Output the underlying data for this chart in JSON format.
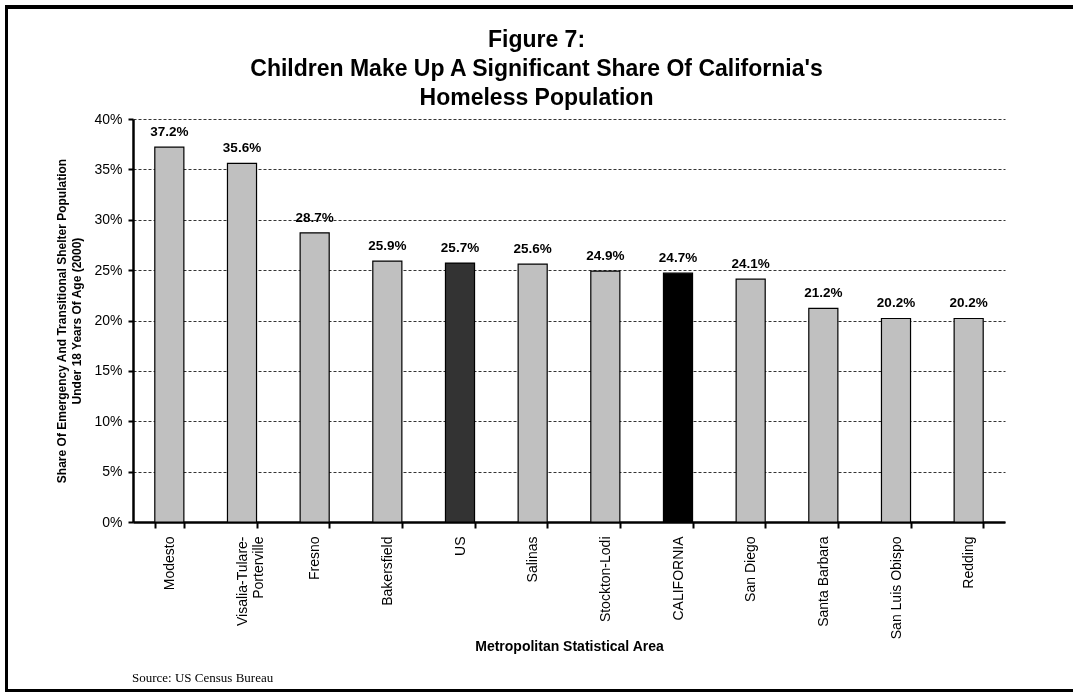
{
  "chart_data": {
    "type": "bar",
    "title": "Figure 7:\nChildren Make Up A Significant Share Of California's\nHomeless Population",
    "xlabel": "Metropolitan Statistical Area",
    "ylabel": "Share Of Emergency And Transitional Shelter Population\nUnder 18 Years Of Age (2000)",
    "categories": [
      "Modesto",
      "Visalia-Tulare-Porterville",
      "Fresno",
      "Bakersfield",
      "US",
      "Salinas",
      "Stockton-Lodi",
      "CALIFORNIA",
      "San Diego",
      "Santa Barbara",
      "San Luis Obispo",
      "Redding"
    ],
    "values": [
      37.2,
      35.6,
      28.7,
      25.9,
      25.7,
      25.6,
      24.9,
      24.7,
      24.1,
      21.2,
      20.2,
      20.2
    ],
    "value_labels": [
      "37.2%",
      "35.6%",
      "28.7%",
      "25.9%",
      "25.7%",
      "25.6%",
      "24.9%",
      "24.7%",
      "24.1%",
      "21.2%",
      "20.2%",
      "20.2%"
    ],
    "colors": [
      "#c0c0c0",
      "#c0c0c0",
      "#c0c0c0",
      "#c0c0c0",
      "#333333",
      "#c0c0c0",
      "#c0c0c0",
      "#000000",
      "#c0c0c0",
      "#c0c0c0",
      "#c0c0c0",
      "#c0c0c0"
    ],
    "ylim": [
      0,
      40
    ],
    "yticks": [
      {
        "value": 0,
        "label": "0%"
      },
      {
        "value": 5,
        "label": "5%"
      },
      {
        "value": 10,
        "label": "10%"
      },
      {
        "value": 15,
        "label": "15%"
      },
      {
        "value": 20,
        "label": "20%"
      },
      {
        "value": 25,
        "label": "25%"
      },
      {
        "value": 30,
        "label": "30%"
      },
      {
        "value": 35,
        "label": "35%"
      },
      {
        "value": 40,
        "label": "40%"
      }
    ],
    "grid": "y",
    "annotations": [
      "Source: US Census Bureau"
    ]
  }
}
